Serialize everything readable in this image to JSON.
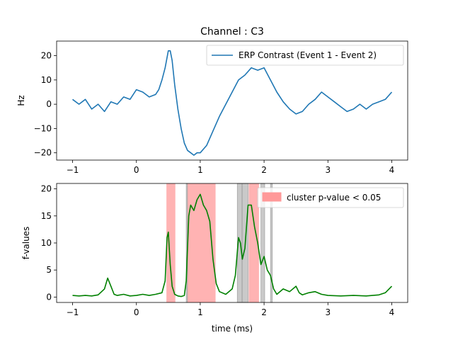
{
  "chart_data": [
    {
      "type": "line",
      "title": "Channel : C3",
      "xlabel": "",
      "ylabel": "Hz",
      "xlim": [
        -1.25,
        4.25
      ],
      "ylim": [
        -23,
        26
      ],
      "xticks": [
        "−1",
        "0",
        "1",
        "2",
        "3",
        "4"
      ],
      "xtick_values": [
        -1,
        0,
        1,
        2,
        3,
        4
      ],
      "yticks": [
        "20",
        "10",
        "0",
        "−10",
        "−20"
      ],
      "ytick_values": [
        20,
        10,
        0,
        -10,
        -20
      ],
      "legend": {
        "entries": [
          "ERP Contrast (Event 1 - Event 2)"
        ],
        "placement": "upper right"
      },
      "series": [
        {
          "name": "ERP Contrast (Event 1 - Event 2)",
          "color": "#1f77b4",
          "x": [
            -1.0,
            -0.9,
            -0.8,
            -0.7,
            -0.6,
            -0.5,
            -0.4,
            -0.3,
            -0.2,
            -0.1,
            0.0,
            0.1,
            0.2,
            0.3,
            0.35,
            0.4,
            0.45,
            0.5,
            0.53,
            0.56,
            0.6,
            0.65,
            0.7,
            0.75,
            0.8,
            0.85,
            0.9,
            0.95,
            1.0,
            1.1,
            1.2,
            1.3,
            1.4,
            1.5,
            1.6,
            1.7,
            1.8,
            1.9,
            2.0,
            2.1,
            2.2,
            2.3,
            2.4,
            2.5,
            2.6,
            2.7,
            2.8,
            2.9,
            3.0,
            3.1,
            3.2,
            3.3,
            3.4,
            3.5,
            3.6,
            3.7,
            3.8,
            3.9,
            4.0
          ],
          "y": [
            2,
            0,
            2,
            -2,
            0,
            -3,
            1,
            0,
            3,
            2,
            6,
            5,
            3,
            4,
            6,
            10,
            15,
            22,
            22,
            18,
            8,
            -2,
            -10,
            -16,
            -19,
            -20,
            -21,
            -20,
            -20,
            -17,
            -11,
            -5,
            0,
            5,
            10,
            12,
            15,
            14,
            15,
            10,
            5,
            1,
            -2,
            -4,
            -3,
            0,
            2,
            5,
            3,
            1,
            -1,
            -3,
            -2,
            0,
            -2,
            0,
            1,
            2,
            5
          ]
        }
      ]
    },
    {
      "type": "line",
      "title": "",
      "xlabel": "time (ms)",
      "ylabel": "f-values",
      "xlim": [
        -1.25,
        4.25
      ],
      "ylim": [
        -1,
        21
      ],
      "xticks": [
        "−1",
        "0",
        "1",
        "2",
        "3",
        "4"
      ],
      "xtick_values": [
        -1,
        0,
        1,
        2,
        3,
        4
      ],
      "yticks": [
        "20",
        "15",
        "10",
        "5",
        "0"
      ],
      "ytick_values": [
        20,
        15,
        10,
        5,
        0
      ],
      "legend": {
        "entries": [
          "cluster p-value < 0.05"
        ],
        "placement": "upper right"
      },
      "significant_clusters": {
        "label": "cluster p-value < 0.05",
        "color": "#ff9999",
        "ranges": [
          [
            0.47,
            0.61
          ],
          [
            0.79,
            1.24
          ],
          [
            1.76,
            1.92
          ]
        ]
      },
      "nonsignificant_clusters": {
        "color": "#bbbbbb",
        "ranges": [
          [
            0.78,
            0.8
          ],
          [
            1.58,
            1.65
          ],
          [
            1.66,
            1.75
          ],
          [
            1.95,
            2.01
          ],
          [
            2.1,
            2.13
          ]
        ]
      },
      "series": [
        {
          "name": "",
          "color": "#008000",
          "x": [
            -1.0,
            -0.9,
            -0.8,
            -0.7,
            -0.6,
            -0.5,
            -0.45,
            -0.4,
            -0.35,
            -0.3,
            -0.2,
            -0.1,
            0.0,
            0.1,
            0.2,
            0.3,
            0.4,
            0.45,
            0.48,
            0.5,
            0.53,
            0.56,
            0.6,
            0.65,
            0.7,
            0.75,
            0.78,
            0.82,
            0.85,
            0.9,
            0.95,
            1.0,
            1.05,
            1.1,
            1.15,
            1.2,
            1.25,
            1.3,
            1.4,
            1.5,
            1.55,
            1.6,
            1.63,
            1.66,
            1.7,
            1.75,
            1.8,
            1.85,
            1.9,
            1.95,
            2.0,
            2.05,
            2.1,
            2.15,
            2.2,
            2.3,
            2.4,
            2.5,
            2.55,
            2.6,
            2.7,
            2.8,
            2.9,
            3.0,
            3.2,
            3.4,
            3.6,
            3.8,
            3.9,
            4.0
          ],
          "y": [
            0.3,
            0.2,
            0.3,
            0.2,
            0.4,
            1.5,
            3.5,
            2.0,
            0.5,
            0.3,
            0.5,
            0.2,
            0.3,
            0.5,
            0.3,
            0.5,
            0.8,
            3.0,
            11.0,
            12.0,
            6.0,
            2.0,
            0.5,
            0.2,
            0.1,
            0.3,
            3.0,
            15.0,
            17.0,
            16.0,
            18.0,
            19.0,
            17.0,
            16.0,
            14.0,
            7.0,
            2.5,
            1.0,
            0.5,
            1.5,
            4.0,
            11.0,
            10.0,
            7.0,
            9.0,
            17.0,
            17.0,
            13.0,
            10.0,
            6.0,
            7.5,
            5.0,
            4.0,
            1.5,
            0.5,
            1.5,
            1.0,
            2.0,
            0.8,
            0.4,
            0.8,
            1.0,
            0.5,
            0.3,
            0.2,
            0.3,
            0.2,
            0.4,
            0.8,
            2.0
          ]
        }
      ]
    }
  ]
}
